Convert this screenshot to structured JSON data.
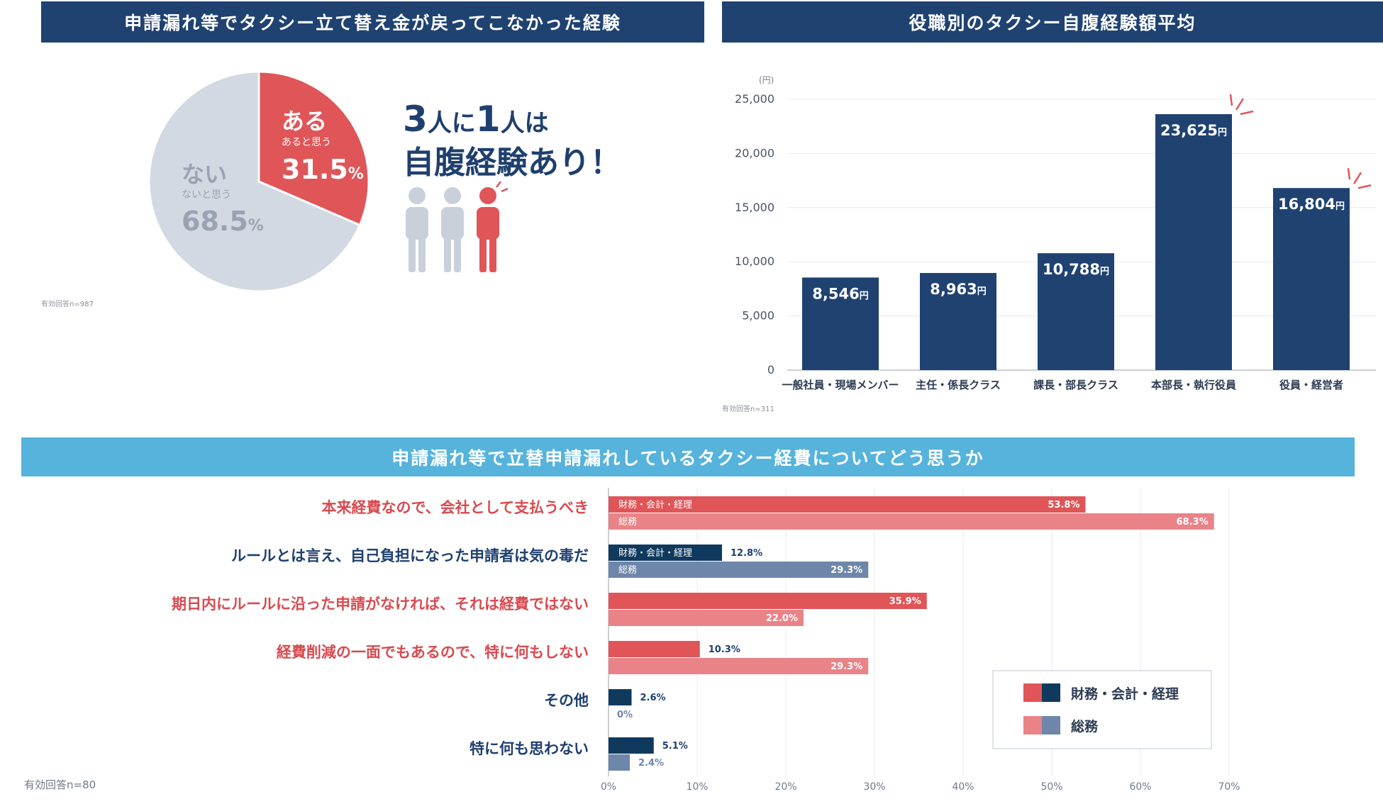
{
  "panel1": {
    "title": "申請漏れ等でタクシー立て替え金が戻ってこなかった経験",
    "yes_label": "ある",
    "yes_sub": "あると思う",
    "yes_value": "31.5",
    "no_label": "ない",
    "no_sub": "ないと思う",
    "no_value": "68.5",
    "percent_sign": "%",
    "headline_num1": "3",
    "headline_a": "人に",
    "headline_num2": "1",
    "headline_b": "人は",
    "headline_line2": "自腹経験あり！",
    "note": "有効回答n=987"
  },
  "panel2": {
    "title": "役職別のタクシー自腹経験額平均",
    "unit_label": "(円)",
    "yen": "円",
    "note": "有効回答n=311"
  },
  "panel3": {
    "title": "申請漏れ等で立替申請漏れしているタクシー経費についてどう思うか",
    "note": "有効回答n=80",
    "bar_label_a": "財務・会計・経理",
    "bar_label_b": "総務"
  },
  "colors": {
    "navy": "#1f4271",
    "red": "#e05558",
    "light_red": "#e98388",
    "dark_navy": "#0f3a5e",
    "slate": "#6e86aa",
    "gray": "#d3d9e2",
    "sky": "#56b3dc",
    "text_red": "#d84a4f"
  },
  "chart_data": [
    {
      "type": "pie",
      "title": "申請漏れ等でタクシー立て替え金が戻ってこなかった経験",
      "slices": [
        {
          "label": "ある",
          "sublabel": "あると思う",
          "value": 31.5
        },
        {
          "label": "ない",
          "sublabel": "ないと思う",
          "value": 68.5
        }
      ]
    },
    {
      "type": "bar",
      "title": "役職別のタクシー自腹経験額平均",
      "ylabel": "(円)",
      "ylim": [
        0,
        25000
      ],
      "yticks": [
        0,
        5000,
        10000,
        15000,
        20000,
        25000
      ],
      "ytick_labels": [
        "0",
        "5,000",
        "10,000",
        "15,000",
        "20,000",
        "25,000"
      ],
      "categories": [
        "一般社員・現場メンバー",
        "主任・係長クラス",
        "課長・部長クラス",
        "本部長・執行役員",
        "役員・経営者"
      ],
      "values": [
        8546,
        8963,
        10788,
        23625,
        16804
      ],
      "value_labels": [
        "8,546",
        "8,963",
        "10,788",
        "23,625",
        "16,804"
      ]
    },
    {
      "type": "bar",
      "orientation": "horizontal",
      "title": "申請漏れ等で立替申請漏れしているタクシー経費についてどう思うか",
      "xlim": [
        0,
        70
      ],
      "xticks": [
        "0%",
        "10%",
        "20%",
        "30%",
        "40%",
        "50%",
        "60%",
        "70%"
      ],
      "categories": [
        "本来経費なので、会社として支払うべき",
        "ルールとは言え、自己負担になった申請者は気の毒だ",
        "期日内にルールに沿った申請がなければ、それは経費ではない",
        "経費削減の一面でもあるので、特に何もしない",
        "その他",
        "特に何も思わない"
      ],
      "category_colors": [
        "red",
        "navy",
        "red",
        "red",
        "navy",
        "navy"
      ],
      "series": [
        {
          "name": "財務・会計・経理",
          "values": [
            53.8,
            12.8,
            35.9,
            10.3,
            2.6,
            5.1
          ],
          "labels": [
            "53.8%",
            "12.8%",
            "35.9%",
            "10.3%",
            "2.6%",
            "5.1%"
          ]
        },
        {
          "name": "総務",
          "values": [
            68.3,
            29.3,
            22.0,
            29.3,
            0,
            2.4
          ],
          "labels": [
            "68.3%",
            "29.3%",
            "22.0%",
            "29.3%",
            "0%",
            "2.4%"
          ]
        }
      ],
      "legend": [
        "財務・会計・経理",
        "総務"
      ],
      "legend_position": "bottom-right"
    }
  ]
}
